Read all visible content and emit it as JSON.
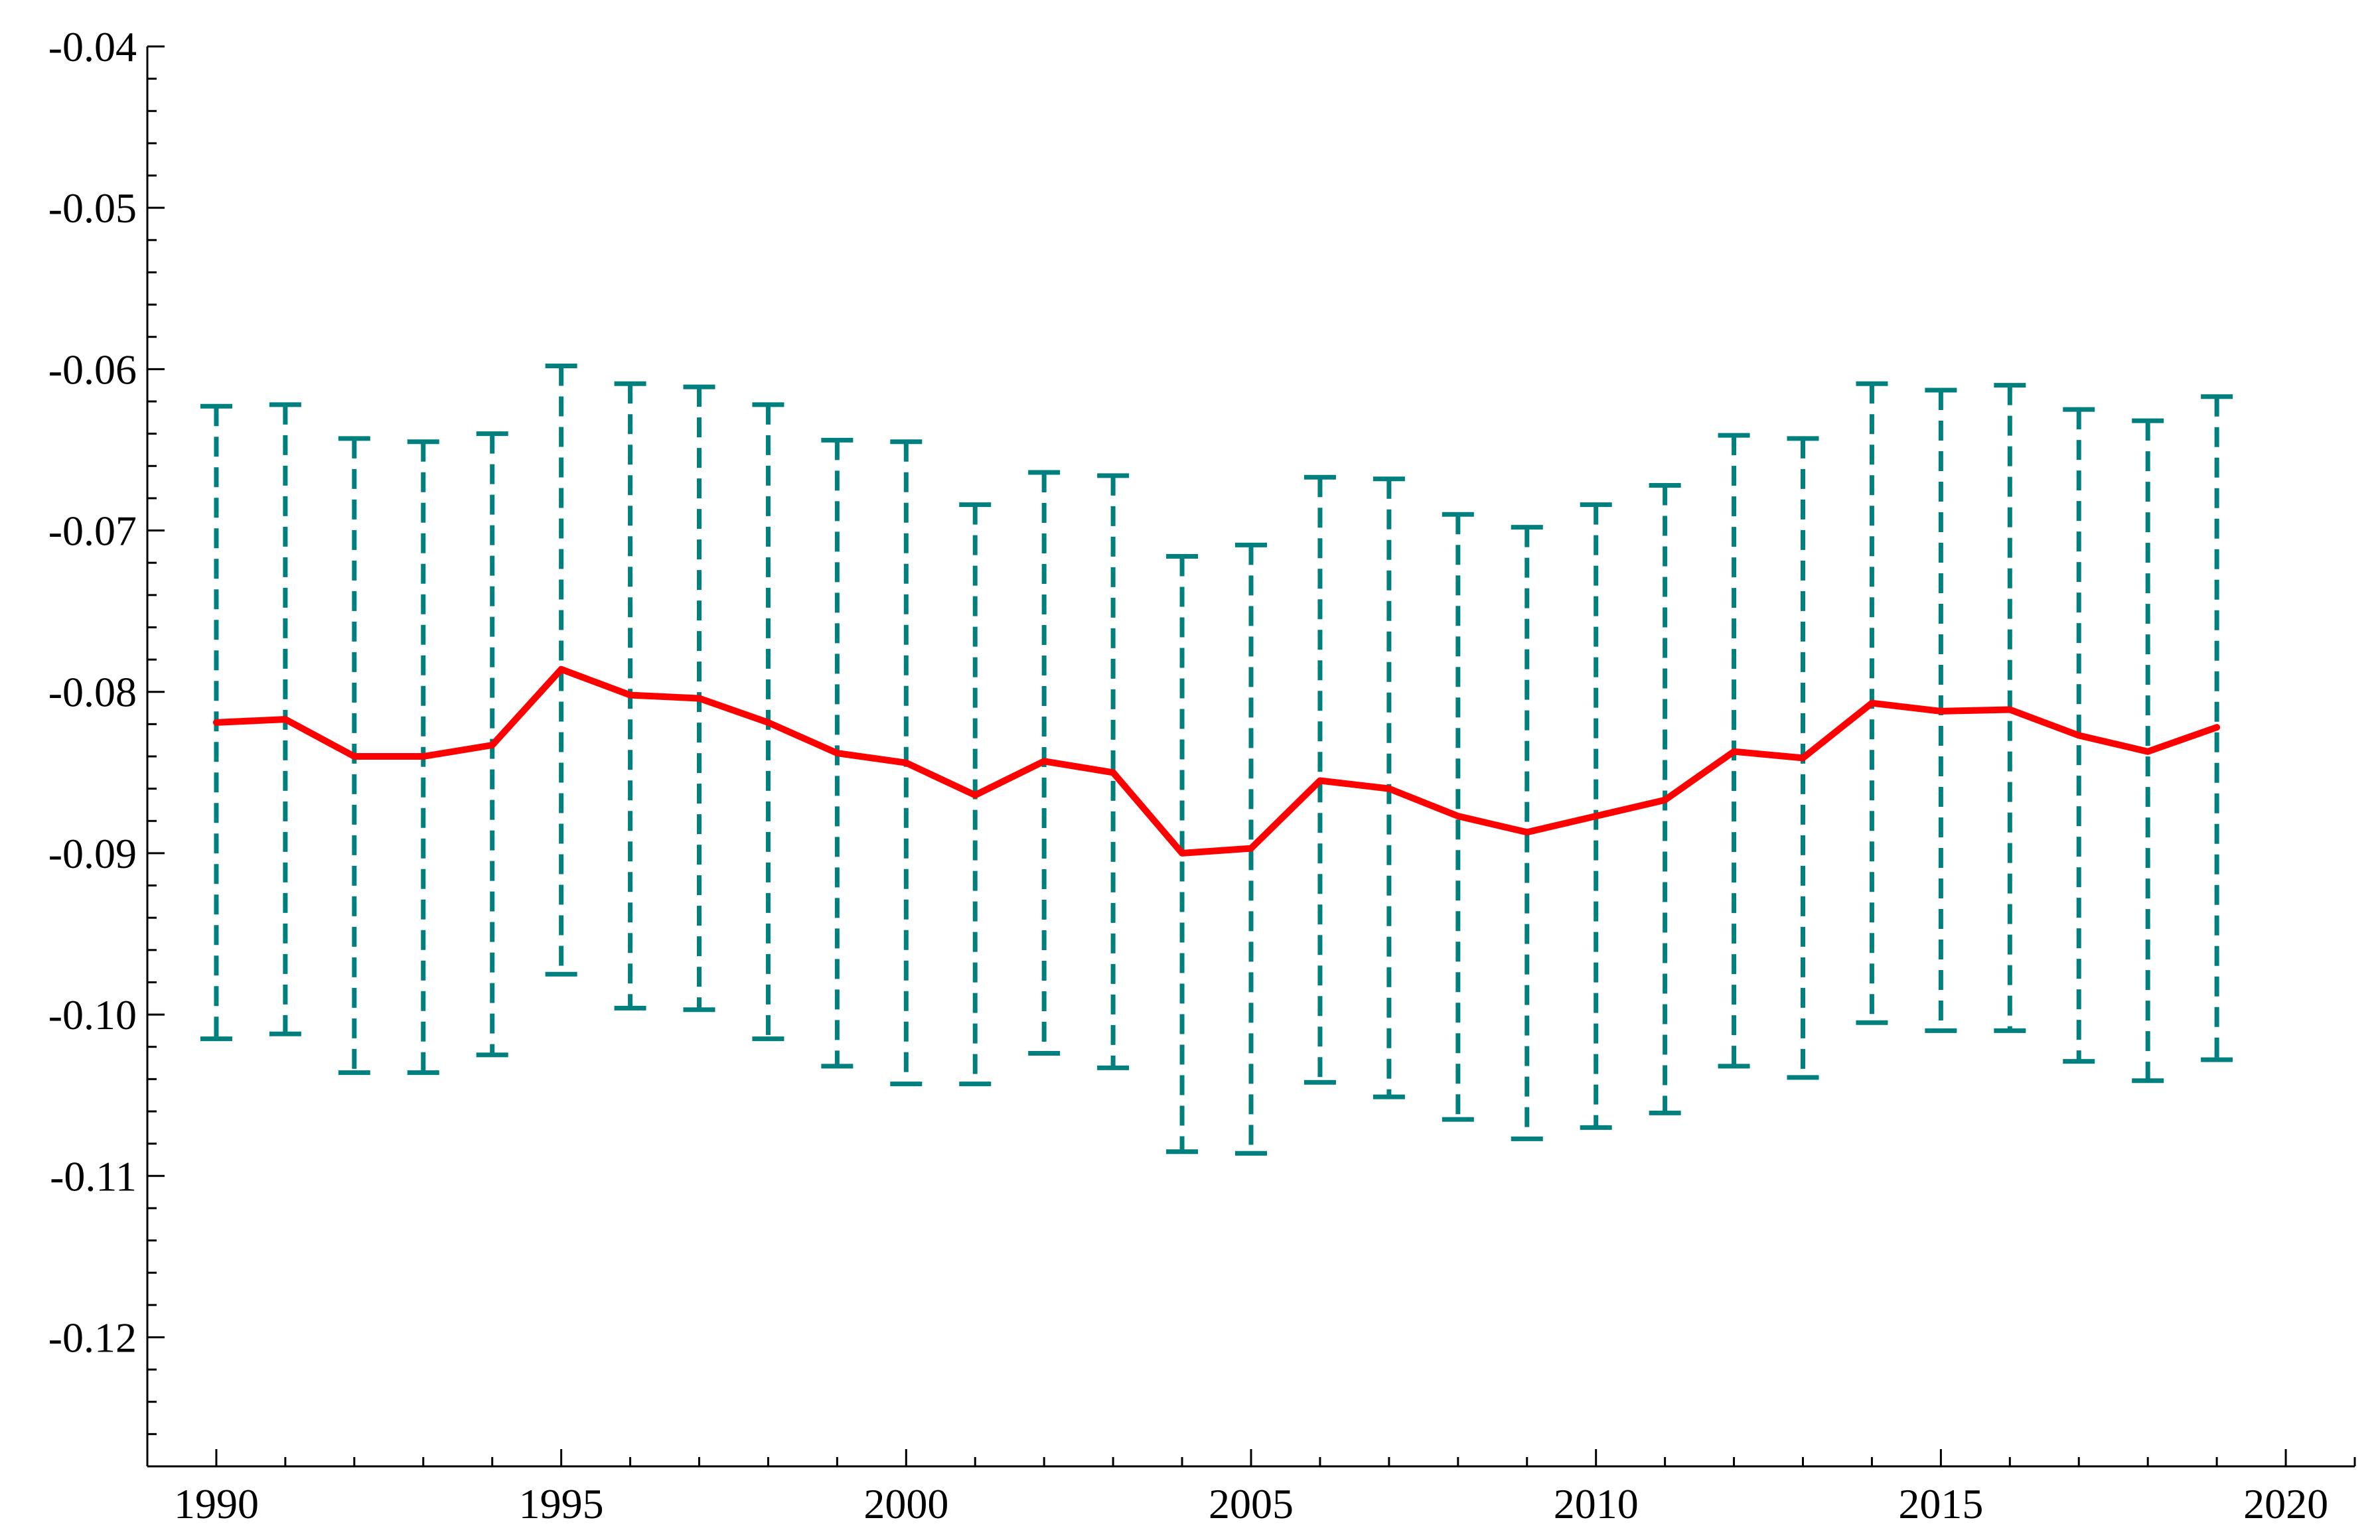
{
  "chart_data": {
    "type": "line",
    "title": "",
    "xlabel": "",
    "ylabel": "",
    "xlim": [
      1989,
      2021
    ],
    "ylim": [
      -0.128,
      -0.04
    ],
    "x_ticks": [
      1990,
      1995,
      2000,
      2005,
      2010,
      2015,
      2020
    ],
    "y_ticks": [
      -0.04,
      -0.05,
      -0.06,
      -0.07,
      -0.08,
      -0.09,
      -0.1,
      -0.11,
      -0.12
    ],
    "y_tick_labels": [
      "-0.04",
      "-0.05",
      "-0.06",
      "-0.07",
      "-0.08",
      "-0.09",
      "-0.10",
      "-0.11",
      "-0.12"
    ],
    "x_minor_step": 1,
    "y_minor_step": 0.002,
    "grid": false,
    "legend": "none",
    "series": [
      {
        "kind": "line",
        "color": "#ff0000",
        "x": [
          1990,
          1991,
          1992,
          1993,
          1994,
          1995,
          1996,
          1997,
          1998,
          1999,
          2000,
          2001,
          2002,
          2003,
          2004,
          2005,
          2006,
          2007,
          2008,
          2009,
          2010,
          2011,
          2012,
          2013,
          2014,
          2015,
          2016,
          2017,
          2018,
          2019
        ],
        "y": [
          -0.0819,
          -0.0817,
          -0.084,
          -0.084,
          -0.0833,
          -0.0786,
          -0.0802,
          -0.0804,
          -0.0819,
          -0.0838,
          -0.0844,
          -0.0864,
          -0.0843,
          -0.085,
          -0.09,
          -0.0897,
          -0.0855,
          -0.086,
          -0.0877,
          -0.0887,
          -0.0877,
          -0.0867,
          -0.0837,
          -0.0841,
          -0.0807,
          -0.0812,
          -0.0811,
          -0.0827,
          -0.0837,
          -0.0822
        ]
      },
      {
        "kind": "errorbar",
        "color": "#007f7f",
        "x": [
          1990,
          1991,
          1992,
          1993,
          1994,
          1995,
          1996,
          1997,
          1998,
          1999,
          2000,
          2001,
          2002,
          2003,
          2004,
          2005,
          2006,
          2007,
          2008,
          2009,
          2010,
          2011,
          2012,
          2013,
          2014,
          2015,
          2016,
          2017,
          2018,
          2019
        ],
        "upper": [
          -0.0623,
          -0.0622,
          -0.0643,
          -0.0645,
          -0.064,
          -0.0598,
          -0.0609,
          -0.0611,
          -0.0622,
          -0.0644,
          -0.0645,
          -0.0684,
          -0.0664,
          -0.0666,
          -0.0716,
          -0.0709,
          -0.0667,
          -0.0668,
          -0.069,
          -0.0698,
          -0.0684,
          -0.0672,
          -0.0641,
          -0.0643,
          -0.0609,
          -0.0613,
          -0.061,
          -0.0625,
          -0.0632,
          -0.0617
        ],
        "lower": [
          -0.1015,
          -0.1012,
          -0.1036,
          -0.1036,
          -0.1025,
          -0.0975,
          -0.0996,
          -0.0997,
          -0.1015,
          -0.1032,
          -0.1043,
          -0.1043,
          -0.1024,
          -0.1033,
          -0.1085,
          -0.1086,
          -0.1042,
          -0.1051,
          -0.1065,
          -0.1077,
          -0.107,
          -0.1061,
          -0.1032,
          -0.1039,
          -0.1005,
          -0.101,
          -0.101,
          -0.1029,
          -0.1041,
          -0.1028
        ]
      }
    ]
  }
}
